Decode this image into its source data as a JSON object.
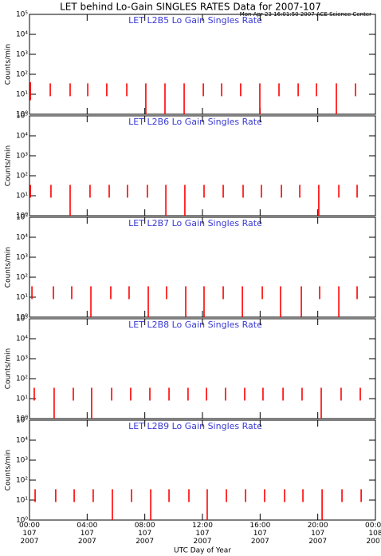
{
  "title": "LET behind Lo-Gain SINGLES RATES Data for 2007-107",
  "subtitle": "Mon Apr 23 16:01:50 2007 ACE Science Center",
  "xlabel": "UTC Day of Year",
  "chart_data": [
    {
      "type": "spike",
      "title": "LET L2B5 Lo Gain Singles Rate",
      "ylabel": "Counts/min",
      "color": "#ff0000",
      "log": true,
      "xlim": [
        0,
        24
      ],
      "xticks": [
        0,
        4,
        8,
        12,
        16,
        20,
        24
      ],
      "ylim": [
        1,
        100000
      ],
      "yticks": [
        {
          "value": 1,
          "label": "10⁰"
        },
        {
          "value": 10,
          "label": "10¹"
        },
        {
          "value": 100,
          "label": "10²"
        },
        {
          "value": 1000,
          "label": "10³"
        },
        {
          "value": 10000,
          "label": "10⁴"
        },
        {
          "value": 100000,
          "label": "10⁵"
        }
      ],
      "x": [
        0.06,
        1.44,
        2.82,
        4.04,
        5.36,
        6.75,
        8.07,
        9.4,
        10.73,
        12.06,
        13.33,
        14.65,
        15.98,
        17.31,
        18.64,
        19.91,
        21.29,
        22.62
      ],
      "high": [
        40,
        35,
        35,
        35,
        35,
        35,
        35,
        35,
        35,
        35,
        35,
        35,
        35,
        35,
        35,
        35,
        35,
        35
      ],
      "low": [
        5,
        8,
        8,
        8,
        8,
        8,
        1,
        1,
        1,
        8,
        8,
        8,
        1,
        8,
        8,
        8,
        1,
        8
      ]
    },
    {
      "type": "spike",
      "title": "LET L2B6 Lo Gain Singles Rate",
      "ylabel": "Counts/min",
      "color": "#ff0000",
      "log": true,
      "xlim": [
        0,
        24
      ],
      "xticks": [
        0,
        4,
        8,
        12,
        16,
        20,
        24
      ],
      "ylim": [
        1,
        100000
      ],
      "yticks": [
        {
          "value": 1,
          "label": "10⁰"
        },
        {
          "value": 10,
          "label": "10¹"
        },
        {
          "value": 100,
          "label": "10²"
        },
        {
          "value": 1000,
          "label": "10³"
        },
        {
          "value": 10000,
          "label": "10⁴"
        },
        {
          "value": 100000,
          "label": "10⁵"
        }
      ],
      "x": [
        0.06,
        1.49,
        2.82,
        4.2,
        5.53,
        6.8,
        8.18,
        9.46,
        10.78,
        12.11,
        13.44,
        14.82,
        16.09,
        17.48,
        18.75,
        20.07,
        21.46,
        22.73
      ],
      "high": [
        35,
        35,
        35,
        35,
        35,
        35,
        35,
        35,
        35,
        35,
        35,
        35,
        35,
        35,
        35,
        35,
        35,
        35
      ],
      "low": [
        8,
        8,
        1,
        8,
        8,
        8,
        8,
        1,
        1,
        8,
        8,
        8,
        8,
        8,
        8,
        1,
        8,
        8
      ]
    },
    {
      "type": "spike",
      "title": "LET L2B7 Lo Gain Singles Rate",
      "ylabel": "Counts/min",
      "color": "#ff0000",
      "log": true,
      "xlim": [
        0,
        24
      ],
      "xticks": [
        0,
        4,
        8,
        12,
        16,
        20,
        24
      ],
      "ylim": [
        1,
        100000
      ],
      "yticks": [
        {
          "value": 1,
          "label": "10⁰"
        },
        {
          "value": 10,
          "label": "10¹"
        },
        {
          "value": 100,
          "label": "10²"
        },
        {
          "value": 1000,
          "label": "10³"
        },
        {
          "value": 10000,
          "label": "10⁴"
        },
        {
          "value": 100000,
          "label": "10⁵"
        }
      ],
      "x": [
        0.17,
        1.66,
        2.93,
        4.26,
        5.64,
        6.91,
        8.24,
        9.51,
        10.84,
        12.11,
        13.44,
        14.77,
        16.15,
        17.42,
        18.86,
        20.13,
        21.46,
        22.73
      ],
      "high": [
        35,
        35,
        35,
        35,
        35,
        35,
        35,
        35,
        35,
        35,
        35,
        35,
        35,
        35,
        35,
        35,
        35,
        35
      ],
      "low": [
        8,
        8,
        8,
        1,
        8,
        8,
        1,
        8,
        1,
        1,
        8,
        1,
        8,
        1,
        1,
        8,
        1,
        8
      ]
    },
    {
      "type": "spike",
      "title": "LET L2B8 Lo Gain Singles Rate",
      "ylabel": "Counts/min",
      "color": "#ff0000",
      "log": true,
      "xlim": [
        0,
        24
      ],
      "xticks": [
        0,
        4,
        8,
        12,
        16,
        20,
        24
      ],
      "ylim": [
        1,
        100000
      ],
      "yticks": [
        {
          "value": 1,
          "label": "10⁰"
        },
        {
          "value": 10,
          "label": "10¹"
        },
        {
          "value": 100,
          "label": "10²"
        },
        {
          "value": 1000,
          "label": "10³"
        },
        {
          "value": 10000,
          "label": "10⁴"
        },
        {
          "value": 100000,
          "label": "10⁵"
        }
      ],
      "x": [
        0.33,
        1.71,
        3.04,
        4.31,
        5.7,
        7.02,
        8.35,
        9.68,
        11.0,
        12.28,
        13.6,
        14.93,
        16.2,
        17.59,
        18.91,
        20.24,
        21.62,
        22.95
      ],
      "high": [
        35,
        35,
        35,
        35,
        35,
        35,
        35,
        35,
        35,
        35,
        35,
        35,
        35,
        35,
        35,
        35,
        35,
        35
      ],
      "low": [
        8,
        1,
        8,
        1,
        8,
        8,
        8,
        8,
        8,
        8,
        8,
        8,
        8,
        8,
        8,
        1,
        8,
        8
      ]
    },
    {
      "type": "spike",
      "title": "LET L2B9 Lo Gain Singles Rate",
      "ylabel": "Counts/min",
      "color": "#ff0000",
      "log": true,
      "xlim": [
        0,
        24
      ],
      "xticks": [
        {
          "value": 0,
          "label": "00:00\n107\n2007"
        },
        {
          "value": 4,
          "label": "04:00\n107\n2007"
        },
        {
          "value": 8,
          "label": "08:00\n107\n2007"
        },
        {
          "value": 12,
          "label": "12:00\n107\n2007"
        },
        {
          "value": 16,
          "label": "16:00\n107\n2007"
        },
        {
          "value": 20,
          "label": "20:00\n107\n2007"
        },
        {
          "value": 24,
          "label": "00:00\n108\n2007"
        }
      ],
      "ylim": [
        1,
        100000
      ],
      "yticks": [
        {
          "value": 1,
          "label": "10⁰"
        },
        {
          "value": 10,
          "label": "10¹"
        },
        {
          "value": 100,
          "label": "10²"
        },
        {
          "value": 1000,
          "label": "10³"
        },
        {
          "value": 10000,
          "label": "10⁴"
        },
        {
          "value": 100000,
          "label": "10⁵"
        }
      ],
      "x": [
        0.39,
        1.82,
        3.1,
        4.42,
        5.75,
        7.08,
        8.41,
        9.68,
        11.06,
        12.33,
        13.66,
        14.99,
        16.31,
        17.7,
        18.97,
        20.3,
        21.68,
        23.01
      ],
      "high": [
        35,
        35,
        35,
        35,
        35,
        35,
        35,
        35,
        35,
        35,
        35,
        35,
        35,
        35,
        35,
        35,
        35,
        35
      ],
      "low": [
        8,
        8,
        8,
        8,
        1,
        8,
        1,
        8,
        8,
        1,
        8,
        8,
        8,
        8,
        8,
        1,
        8,
        8
      ]
    }
  ]
}
